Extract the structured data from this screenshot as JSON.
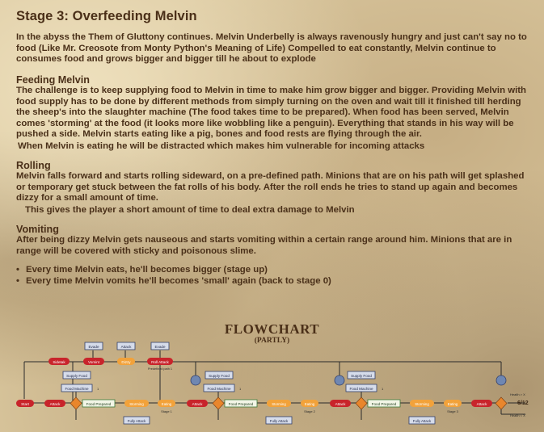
{
  "title": "Stage 3: Overfeeding Melvin",
  "intro": "In the abyss the Them of Gluttony continues. Melvin Underbelly is always ravenously hungry and just can't say no to food (Like Mr. Creosote from Monty Python's Meaning of Life) Compelled to eat constantly, Melvin continue to consumes food and grows bigger and bigger till he about to explode",
  "feeding": {
    "heading": "Feeding Melvin",
    "body": "The challenge is to keep supplying food to Melvin in time to make him grow bigger and bigger. Providing Melvin with food supply has to be done by different methods from simply turning on the oven and wait till it finished till herding the sheep's into the slaughter machine (The food takes time to be prepared). When food has been served, Melvin comes 'storming' at the food (it looks more like wobbling like a penguin). Everything that stands in his way will be pushed a side. Melvin starts eating like a pig, bones and food rests are flying through the air.",
    "note": "When Melvin is eating he will be distracted which makes him vulnerable for incoming attacks"
  },
  "rolling": {
    "heading": "Rolling",
    "body": "Melvin falls forward and starts rolling sideward, on a pre-defined path. Minions that are on his path will get splashed or temporary get stuck between the fat rolls of his body. After the roll ends he tries to stand up again and becomes dizzy for a small amount of time.",
    "note": "This gives the player a short amount of time to deal extra damage to Melvin"
  },
  "vomiting": {
    "heading": "Vomiting",
    "body": "After being dizzy Melvin gets nauseous and starts vomiting within a certain range around him. Minions that are in range will be covered with sticky and poisonous slime."
  },
  "bullets": [
    "Every time Melvin eats, he'll becomes bigger (stage up)",
    "Every time Melvin vomits he'll becomes  'small' again (back to stage 0)"
  ],
  "flowchart": {
    "title": "FLOWCHART",
    "subtitle": "(PARTLY)",
    "top_row": [
      "Evade",
      "Attack",
      "Evade"
    ],
    "mid_row": [
      "Sidetak",
      "Vomint",
      "Dizzy",
      "Roll Attack"
    ],
    "mid_caption": "Predefined path 1",
    "supply_food": "Supply Food",
    "food_machine": "Food Machine",
    "start": "Start",
    "attack": "Attack",
    "food_prepared": "Food Prepared",
    "storming": "Storming",
    "eating": "Eating",
    "fully_attack": "Fully Attack",
    "stages": [
      "Stage 1",
      "Stage 2",
      "Stage 3"
    ],
    "health_gt": "Health > X",
    "health_lt": "Health < X",
    "mini_label": "1",
    "colors": {
      "red": "#c8242b",
      "blue_bg": "#d6dcea",
      "blue_border": "#33406b",
      "orange": "#f2a23a",
      "green_bg": "#f2f5e6",
      "green_border": "#3c7a3a",
      "diamond": "#e9862c",
      "circle": "#6f87b2"
    }
  },
  "page_number": "6/12"
}
